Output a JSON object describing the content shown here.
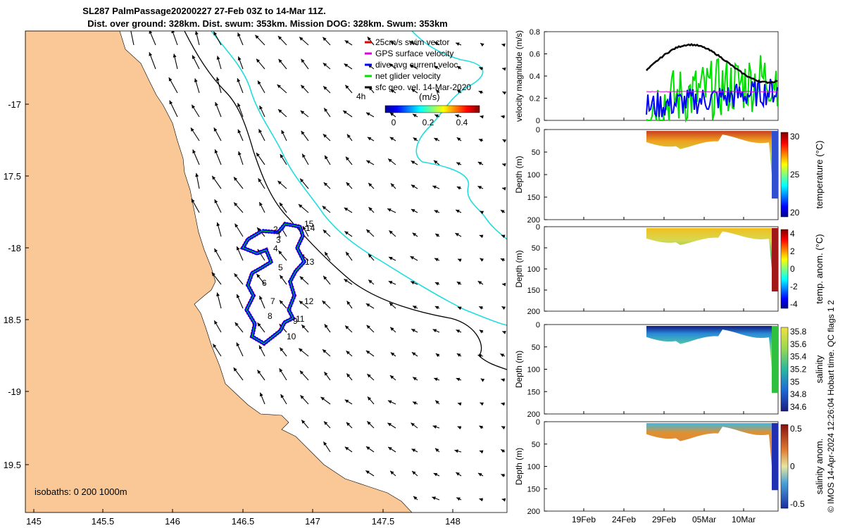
{
  "header": {
    "title_line1": "SL287 PalmPassage20200227 27-Feb 03Z to 14-Mar 11Z.",
    "title_line2": "Dist. over ground: 328km. Dist. swum: 353km. Mission DOG: 328km. Swum: 353km"
  },
  "map": {
    "lon_ticks": [
      "145",
      "145.5",
      "146",
      "146.5",
      "147",
      "147.5",
      "148"
    ],
    "lat_ticks": [
      "-17",
      "17.5",
      "-18",
      "18.5",
      "-19",
      "19.5"
    ],
    "isobaths_label": "isobaths: 0   200  1000m",
    "legend": {
      "items": [
        {
          "label": "25cm/s swim vector",
          "color": "#e00000"
        },
        {
          "label": "GPS surface velocity",
          "color": "#e000e0"
        },
        {
          "label": "dive-avg current veloc.",
          "color": "#0000ff"
        },
        {
          "label": "net glider velocity",
          "color": "#00e000"
        },
        {
          "label": "sfc geo. vel. 14-Mar-2020",
          "color": "#000000"
        }
      ],
      "time_label": "4h",
      "colorbar_title": "(m/s)",
      "colorbar_ticks": [
        "0",
        "0.2",
        "0.4"
      ]
    },
    "waypoints": [
      "1",
      "2",
      "3",
      "4",
      "5",
      "6",
      "7",
      "8",
      "9",
      "10",
      "11",
      "12",
      "13",
      "14",
      "15"
    ],
    "land_color": "#f9c896",
    "track_colors": {
      "swim": "#e00000",
      "current": "#0000ff",
      "net": "#00e000"
    }
  },
  "panels": {
    "velocity": {
      "ylabel": "velocity magnitude (m/s)",
      "yticks": [
        "0",
        "0.2",
        "0.4",
        "0.6",
        "0.8"
      ]
    },
    "temperature": {
      "ylabel": "Depth (m)",
      "yticks": [
        "0",
        "50",
        "100",
        "150",
        "200"
      ],
      "cbar_label": "temperature (°C)",
      "cbar_ticks": [
        "30",
        "25",
        "20"
      ]
    },
    "temp_anom": {
      "ylabel": "Depth (m)",
      "yticks": [
        "0",
        "50",
        "100",
        "150",
        "200"
      ],
      "cbar_label": "temp. anom. (°C)",
      "cbar_ticks": [
        "4",
        "2",
        "0",
        "-2",
        "-4"
      ]
    },
    "salinity": {
      "ylabel": "Depth (m)",
      "yticks": [
        "0",
        "50",
        "100",
        "150",
        "200"
      ],
      "cbar_label": "salinity",
      "cbar_ticks": [
        "35.8",
        "35.6",
        "35.4",
        "35.2",
        "35",
        "34.8",
        "34.6"
      ]
    },
    "sal_anom": {
      "ylabel": "Depth (m)",
      "yticks": [
        "0",
        "50",
        "100",
        "150",
        "200"
      ],
      "cbar_label": "salinity anom.",
      "cbar_ticks": [
        "0.5",
        "0",
        "-0.5"
      ]
    },
    "time_ticks": [
      "19Feb",
      "24Feb",
      "29Feb",
      "05Mar",
      "10Mar"
    ]
  },
  "footer": {
    "credit": "© IMOS 14-Apr-2024 12:26:04 Hobart time. QC flags 1  2"
  }
}
